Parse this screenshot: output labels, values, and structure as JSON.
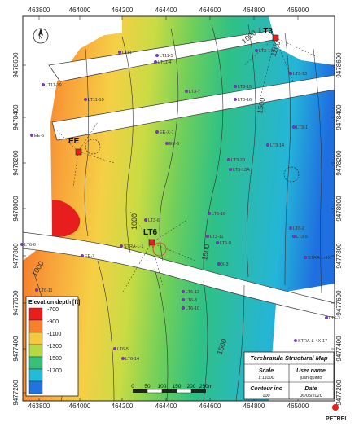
{
  "x_ticks": [
    "463800",
    "464000",
    "464200",
    "464400",
    "464600",
    "464800",
    "465000"
  ],
  "y_ticks": [
    "9478600",
    "9478400",
    "9478200",
    "9478000",
    "9477800",
    "9477600",
    "9477400",
    "9477200"
  ],
  "y_ticks_right": [
    "9478600",
    "9478400",
    "9478200",
    "9478000",
    "9477800",
    "9477600",
    "9477400",
    "9477200"
  ],
  "north_label": "N",
  "legend": {
    "title": "Elevation depth [ft]",
    "items": [
      {
        "label": "-700",
        "color": "#e61e1e"
      },
      {
        "label": "-900",
        "color": "#f5822a"
      },
      {
        "label": "-1100",
        "color": "#f5c841"
      },
      {
        "label": "-1300",
        "color": "#b6d943"
      },
      {
        "label": "-1500",
        "color": "#37c07a"
      },
      {
        "label": "-1700",
        "color": "#22bcd6"
      },
      {
        "label": "",
        "color": "#1f74e0"
      }
    ]
  },
  "scale_bar": {
    "labels": [
      "0",
      "50",
      "100",
      "150",
      "200",
      "250m"
    ]
  },
  "title_block": {
    "title": "Terebratula Structural Map",
    "scale_label": "Scale",
    "scale_value": "1:11000",
    "user_label": "User name",
    "user_value": "juan.quinto",
    "contour_label": "Contour inc",
    "contour_value": "100",
    "date_label": "Date",
    "date_value": "06/05/2020"
  },
  "logo": "PETREL",
  "contour_labels": [
    "1000",
    "1000",
    "1000",
    "1100",
    "1500",
    "1500",
    "1500"
  ],
  "major_wells": [
    "EE",
    "LT6",
    "LT3"
  ],
  "well_labels": [
    "LT11-5",
    "LT11-4",
    "LT11",
    "LT11-19",
    "LT11-10",
    "EE-5",
    "LT3-7",
    "LT3-17A",
    "LT3-13",
    "LT3-16",
    "LT3-15",
    "LT3-1",
    "LT3-14",
    "EE-X-1",
    "EE-6",
    "LT3-20",
    "LT3-13A",
    "LT6-16",
    "LT6-9",
    "LT3-11",
    "LT3-6",
    "LT6-2",
    "LT3-5",
    "STRA-L-4X",
    "LT6-6",
    "EE-7",
    "STRA-L-1",
    "LT6-11",
    "LT6-13",
    "LT6-8",
    "LT6-10",
    "X-3",
    "LT6-5",
    "LT6-14",
    "LT6-3",
    "STRA-L-4X-17"
  ]
}
